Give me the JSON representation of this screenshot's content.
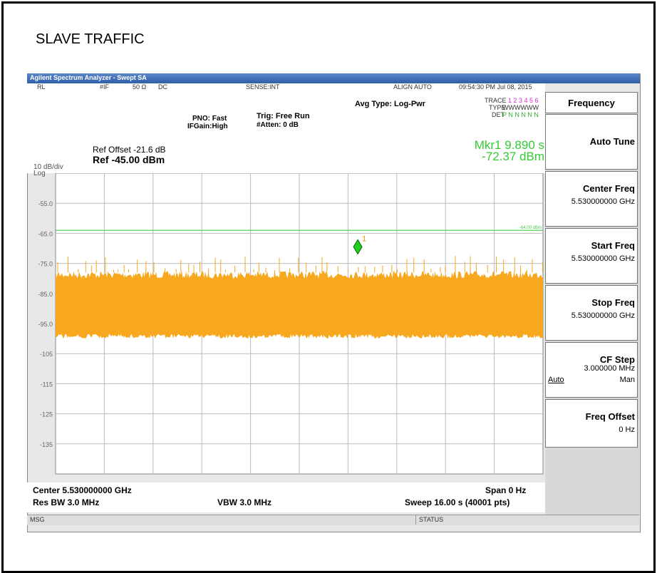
{
  "page_title": "SLAVE TRAFFIC",
  "window": {
    "title": "Agilent Spectrum Analyzer - Swept SA"
  },
  "status_row": {
    "rl": "RL",
    "if": "#IF",
    "impedance": "50 Ω",
    "coupling": "DC",
    "sense": "SENSE:INT",
    "align": "ALIGN AUTO",
    "datetime": "09:54:30 PM Jul 08, 2015"
  },
  "settings": {
    "pno": "PNO: Fast",
    "ifgain": "IFGain:High",
    "trig": "Trig: Free Run",
    "atten": "#Atten: 0 dB",
    "avg_type": "Avg Type: Log-Pwr",
    "trace_label": "TRACE",
    "trace_nums": "1 2 3 4 5 6",
    "type_label": "TYPE",
    "type_value": "WWWWWW",
    "det_label": "DET",
    "det_value": "P N N N N N"
  },
  "marker": {
    "position": "Mkr1 9.890 s",
    "level": "-72.37 dBm",
    "id": "1"
  },
  "ref": {
    "offset": "Ref Offset -21.6 dB",
    "level": "Ref -45.00 dBm",
    "scale": "10 dB/div",
    "mode": "Log"
  },
  "y_labels": [
    "-55.0",
    "-65.0",
    "-75.0",
    "-85.0",
    "-95.0",
    "-105",
    "-115",
    "-125",
    "-135"
  ],
  "limit_line_label": "-64.00 dBm",
  "footer": {
    "center": "Center 5.530000000 GHz",
    "res_bw": "Res BW 3.0 MHz",
    "vbw": "VBW 3.0 MHz",
    "span": "Span 0 Hz",
    "sweep": "Sweep  16.00 s (40001 pts)"
  },
  "status_bar": {
    "msg": "MSG",
    "status": "STATUS"
  },
  "menu": {
    "title": "Frequency",
    "keys": [
      {
        "label": "Auto Tune"
      },
      {
        "label": "Center Freq",
        "value": "5.530000000 GHz"
      },
      {
        "label": "Start Freq",
        "value": "5.530000000 GHz"
      },
      {
        "label": "Stop Freq",
        "value": "5.530000000 GHz"
      },
      {
        "label": "CF Step",
        "value": "3.000000 MHz",
        "auto": "Auto",
        "man": "Man"
      },
      {
        "label": "Freq Offset",
        "value": "0 Hz"
      }
    ]
  }
}
